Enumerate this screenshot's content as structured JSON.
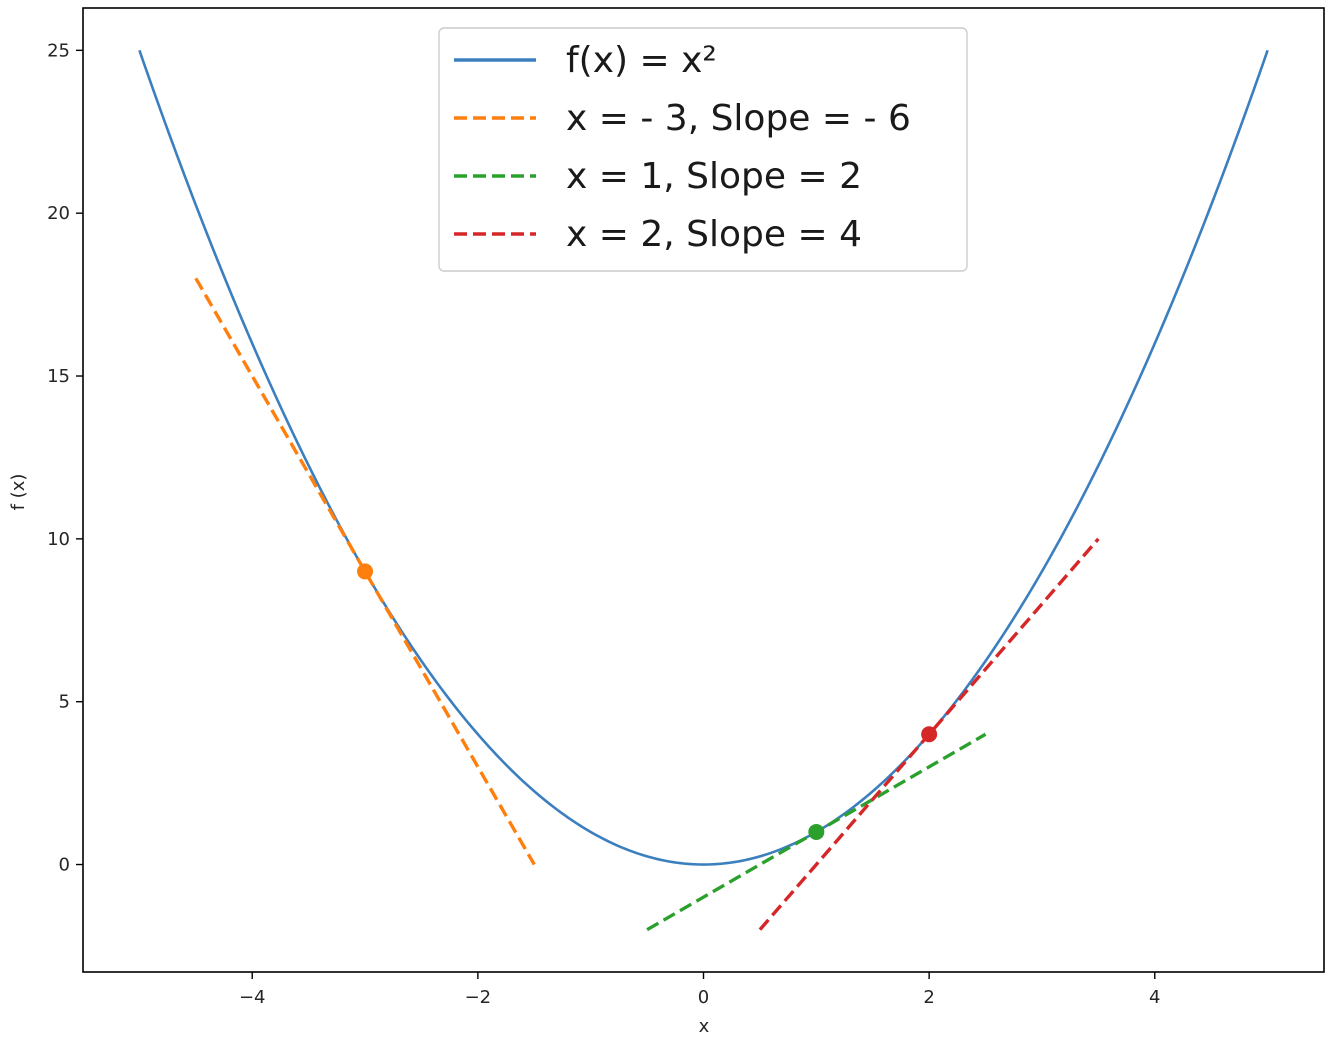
{
  "chart_data": {
    "type": "line",
    "xlabel": "x",
    "ylabel": "f (x)",
    "xlim": [
      -5.5,
      5.5
    ],
    "ylim": [
      -3.3,
      26.3
    ],
    "x_ticks": [
      -4,
      -2,
      0,
      2,
      4
    ],
    "x_tick_labels": [
      "−4",
      "−2",
      "0",
      "2",
      "4"
    ],
    "y_ticks": [
      0,
      5,
      10,
      15,
      20,
      25
    ],
    "y_tick_labels": [
      "0",
      "5",
      "10",
      "15",
      "20",
      "25"
    ],
    "grid": false,
    "legend_position": "top-center",
    "curve": {
      "name": "f(x) = x²",
      "function": "x^2",
      "x_range": [
        -5,
        5
      ],
      "color": "#3b7fbf"
    },
    "tangents": [
      {
        "name": "x = - 3, Slope = - 6",
        "x0": -3,
        "y0": 9,
        "slope": -6,
        "x_range": [
          -4.5,
          -1.5
        ],
        "color": "#ff7f0e"
      },
      {
        "name": "x = 1, Slope = 2",
        "x0": 1,
        "y0": 1,
        "slope": 2,
        "x_range": [
          -0.5,
          2.5
        ],
        "color": "#2ca02c"
      },
      {
        "name": "x = 2, Slope = 4",
        "x0": 2,
        "y0": 4,
        "slope": 4,
        "x_range": [
          0.5,
          3.5
        ],
        "color": "#d62728"
      }
    ]
  }
}
